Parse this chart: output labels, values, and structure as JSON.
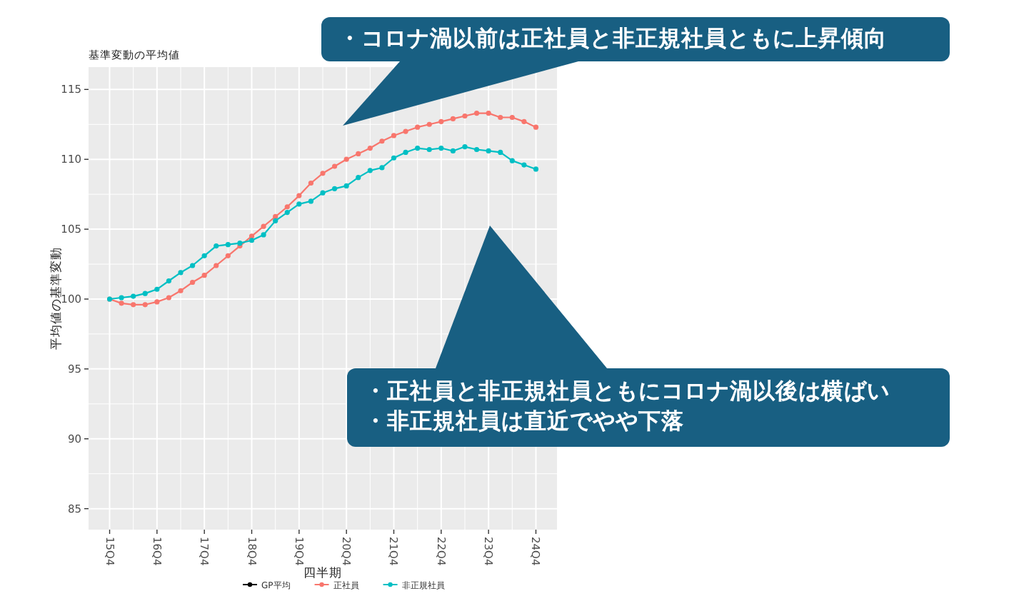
{
  "chart_data": {
    "type": "line",
    "title": "基準変動の平均値",
    "xlabel": "四半期",
    "ylabel": "平均値の基準変動",
    "categories": [
      "15Q4",
      null,
      null,
      null,
      "16Q4",
      null,
      null,
      null,
      "17Q4",
      null,
      null,
      null,
      "18Q4",
      null,
      null,
      null,
      "19Q4",
      null,
      null,
      null,
      "20Q4",
      null,
      null,
      null,
      "21Q4",
      null,
      null,
      null,
      "22Q4",
      null,
      null,
      null,
      "23Q4",
      null,
      null,
      null,
      "24Q4"
    ],
    "series": [
      {
        "name": "GP平均",
        "color": "#000000",
        "values": [
          null,
          null,
          null,
          null,
          null,
          null,
          null,
          null,
          null,
          null,
          null,
          null,
          null,
          null,
          null,
          null,
          null,
          null,
          null,
          null,
          null,
          null,
          null,
          null,
          null,
          null,
          null,
          null,
          null,
          null,
          null,
          null,
          null,
          null,
          null,
          null,
          null
        ]
      },
      {
        "name": "正社員",
        "color": "#f8766d",
        "values": [
          100,
          99.7,
          99.6,
          99.6,
          99.8,
          100.1,
          100.6,
          101.2,
          101.7,
          102.4,
          103.1,
          103.8,
          104.5,
          105.2,
          105.9,
          106.6,
          107.4,
          108.3,
          109.0,
          109.5,
          110.0,
          110.4,
          110.8,
          111.3,
          111.7,
          112.0,
          112.3,
          112.5,
          112.7,
          112.9,
          113.1,
          113.3,
          113.3,
          113.0,
          113.0,
          112.7,
          112.3
        ]
      },
      {
        "name": "非正規社員",
        "color": "#00bfc4",
        "values": [
          100,
          100.1,
          100.2,
          100.4,
          100.7,
          101.3,
          101.9,
          102.4,
          103.1,
          103.8,
          103.9,
          104.0,
          104.2,
          104.6,
          105.6,
          106.2,
          106.8,
          107.0,
          107.6,
          107.9,
          108.1,
          108.7,
          109.2,
          109.4,
          110.1,
          110.5,
          110.8,
          110.7,
          110.8,
          110.6,
          110.9,
          110.7,
          110.6,
          110.5,
          109.9,
          109.6,
          109.3
        ]
      }
    ],
    "ylim": [
      83.5,
      116.6
    ],
    "yticks": [
      85,
      90,
      95,
      100,
      105,
      110,
      115
    ],
    "grid": true,
    "marker": "circle",
    "line_style": "solid",
    "legend": "bottom",
    "annotations": [
      "・コロナ渦以前は正社員と非正規社員ともに上昇傾向",
      "・正社員と非正規社員ともにコロナ渦以後は横ばい",
      "・非正規社員は直近でやや下落"
    ]
  }
}
